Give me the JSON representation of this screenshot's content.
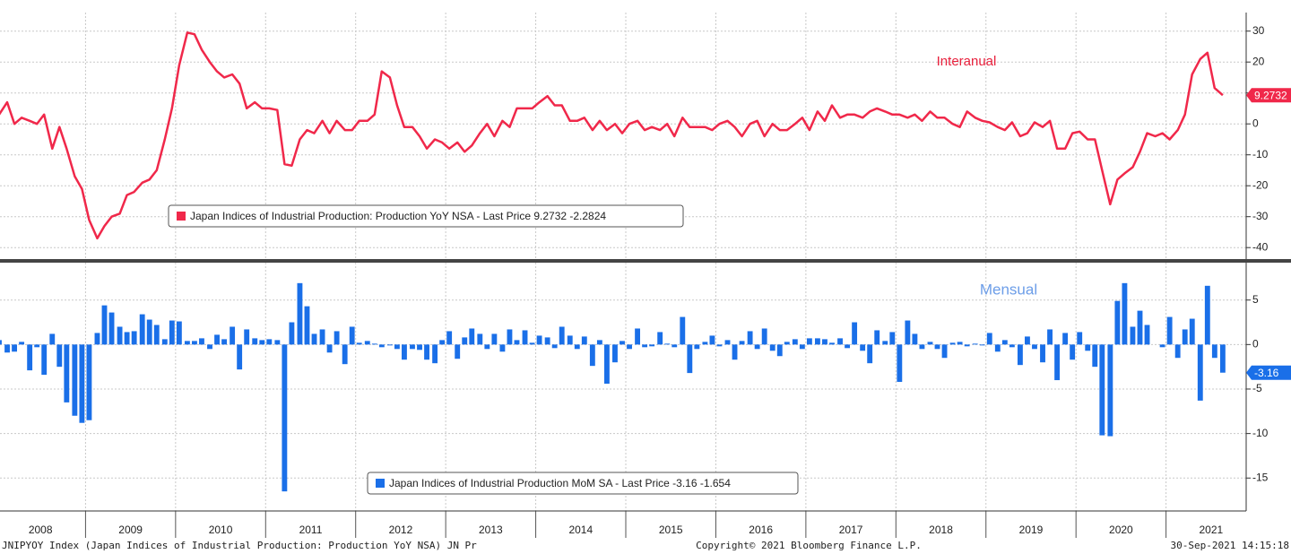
{
  "chart_data": [
    {
      "type": "line",
      "annotation": "Interanual",
      "annotation_color": "#e8203c",
      "series": [
        {
          "name": "Japan Indices of Industrial Production: Production YoY NSA - Last Price 9.2732  -2.2824",
          "color": "#f0284a",
          "values": [
            3,
            7,
            0,
            2,
            1,
            0,
            3,
            -8,
            -1,
            -8,
            -17,
            -21,
            -31,
            -37,
            -33,
            -30,
            -29,
            -23,
            -22,
            -19,
            -18,
            -15,
            -5,
            5,
            19,
            29.5,
            29,
            24,
            20,
            17,
            15,
            16,
            13,
            5,
            7,
            5,
            5,
            4.5,
            -13,
            -13.5,
            -5,
            -2,
            -3,
            1,
            -3,
            1,
            -2,
            -2,
            1,
            1,
            3,
            17,
            15,
            6,
            -1,
            -1,
            -4,
            -8,
            -5,
            -6,
            -8,
            -6,
            -9,
            -7,
            -3,
            0,
            -4,
            1,
            -1,
            5,
            5,
            5,
            7,
            9,
            6,
            6,
            1,
            1,
            2,
            -2,
            1,
            -2,
            0,
            -3,
            0,
            1,
            -2,
            -1,
            -2,
            0,
            -4,
            2,
            -1,
            -1,
            -1,
            -2,
            0,
            1,
            -1,
            -4,
            0,
            1,
            -4,
            0,
            -2,
            -2,
            0,
            2,
            -2,
            4,
            1,
            6,
            2,
            3,
            3,
            2,
            4,
            5,
            4,
            3,
            3,
            2,
            3,
            1,
            4,
            2,
            2,
            0,
            -1,
            4,
            2,
            1,
            0.5,
            -1,
            -2,
            0.5,
            -4,
            -3,
            0.5,
            -1,
            1,
            -8,
            -8,
            -3,
            -2.5,
            -5,
            -5,
            -15,
            -26,
            -18,
            -16,
            -14,
            -9,
            -3,
            -4,
            -3,
            -5,
            -2,
            3,
            16,
            21,
            23,
            11.6,
            9.2732
          ]
        }
      ],
      "ylim": [
        -44,
        36
      ],
      "yticks": [
        -40,
        -30,
        -20,
        -10,
        0,
        10,
        20,
        30
      ],
      "grid": true,
      "legend": "lower-left"
    },
    {
      "type": "bar",
      "annotation": "Mensual",
      "annotation_color": "#6d9ee8",
      "x": [
        2008.04,
        2008.13,
        2008.21,
        2008.29,
        2008.38,
        2008.46,
        2008.54,
        2008.63,
        2008.71,
        2008.79,
        2008.88,
        2008.96,
        2009.04,
        2009.13,
        2009.21,
        2009.29,
        2009.38,
        2009.46,
        2009.54,
        2009.63,
        2009.71,
        2009.79,
        2009.88,
        2009.96,
        2010.04,
        2010.13,
        2010.21,
        2010.29,
        2010.38,
        2010.46,
        2010.54,
        2010.63,
        2010.71,
        2010.79,
        2010.88,
        2010.96,
        2011.04,
        2011.13,
        2011.21,
        2011.29,
        2011.38,
        2011.46,
        2011.54,
        2011.63,
        2011.71,
        2011.79,
        2011.88,
        2011.96,
        2012.04,
        2012.13,
        2012.21,
        2012.29,
        2012.38,
        2012.46,
        2012.54,
        2012.63,
        2012.71,
        2012.79,
        2012.88,
        2012.96,
        2013.04,
        2013.13,
        2013.21,
        2013.29,
        2013.38,
        2013.46,
        2013.54,
        2013.63,
        2013.71,
        2013.79,
        2013.88,
        2013.96,
        2014.04,
        2014.13,
        2014.21,
        2014.29,
        2014.38,
        2014.46,
        2014.54,
        2014.63,
        2014.71,
        2014.79,
        2014.88,
        2014.96,
        2015.04,
        2015.13,
        2015.21,
        2015.29,
        2015.38,
        2015.46,
        2015.54,
        2015.63,
        2015.71,
        2015.79,
        2015.88,
        2015.96,
        2016.04,
        2016.13,
        2016.21,
        2016.29,
        2016.38,
        2016.46,
        2016.54,
        2016.63,
        2016.71,
        2016.79,
        2016.88,
        2016.96,
        2017.04,
        2017.13,
        2017.21,
        2017.29,
        2017.38,
        2017.46,
        2017.54,
        2017.63,
        2017.71,
        2017.79,
        2017.88,
        2017.96,
        2018.04,
        2018.13,
        2018.21,
        2018.29,
        2018.38,
        2018.46,
        2018.54,
        2018.63,
        2018.71,
        2018.79,
        2018.88,
        2018.96,
        2019.04,
        2019.13,
        2019.21,
        2019.29,
        2019.38,
        2019.46,
        2019.54,
        2019.63,
        2019.71,
        2019.79,
        2019.88,
        2019.96,
        2020.04,
        2020.13,
        2020.21,
        2020.29,
        2020.38,
        2020.46,
        2020.54,
        2020.63,
        2020.71,
        2020.79,
        2020.88,
        2020.96,
        2021.04,
        2021.13,
        2021.21,
        2021.29,
        2021.38,
        2021.46,
        2021.54,
        2021.63
      ],
      "series": [
        {
          "name": "Japan Indices of Industrial Production MoM SA - Last Price -3.16  -1.654",
          "color": "#1a6fe8",
          "values": [
            0.5,
            -0.9,
            -0.8,
            0.3,
            -2.9,
            -0.3,
            -3.4,
            1.2,
            -2.5,
            -6.5,
            -8,
            -8.8,
            -8.5,
            1.3,
            4.4,
            3.6,
            2,
            1.4,
            1.5,
            3.4,
            2.8,
            2.2,
            0.6,
            2.7,
            2.6,
            0.4,
            0.4,
            0.7,
            -0.5,
            1.1,
            0.6,
            2,
            -2.8,
            1.7,
            0.7,
            0.5,
            0.6,
            0.5,
            -16.5,
            2.5,
            6.9,
            4.3,
            1.2,
            1.7,
            -0.9,
            1.5,
            -2.2,
            2,
            0.2,
            0.4,
            0.1,
            -0.3,
            -0.1,
            -0.5,
            -1.7,
            -0.5,
            -0.6,
            -1.7,
            -2.1,
            0.5,
            1.5,
            -1.6,
            0.8,
            1.8,
            1.2,
            -0.5,
            1.2,
            -0.8,
            1.7,
            0.5,
            1.6,
            0.2,
            1,
            0.8,
            -0.4,
            2,
            1,
            -0.5,
            0.9,
            -2.4,
            0.5,
            -4.4,
            -2,
            0.4,
            -0.5,
            1.8,
            -0.3,
            -0.2,
            1.4,
            0.1,
            -0.3,
            3.1,
            -3.2,
            -0.5,
            0.3,
            1,
            -0.2,
            0.5,
            -1.7,
            0.4,
            1.5,
            -0.5,
            1.8,
            -0.7,
            -1.3,
            0.3,
            0.6,
            -0.5,
            0.7,
            0.7,
            0.6,
            0.2,
            0.7,
            -0.4,
            2.5,
            -0.7,
            -2.1,
            1.6,
            0.4,
            1.4,
            -4.2,
            2.7,
            1.2,
            -0.5,
            0.3,
            -0.5,
            -1.5,
            0.2,
            0.3,
            -0.2,
            0.1,
            -0.1,
            1.3,
            -0.8,
            0.5,
            -0.3,
            -2.3,
            0.9,
            -0.5,
            -2,
            1.7,
            -4,
            1.3,
            -1.7,
            1.4,
            -0.7,
            -2.5,
            -10.2,
            -10.3,
            4.9,
            6.9,
            2,
            3.8,
            2.2,
            0,
            -0.3,
            3.1,
            -1.5,
            1.7,
            2.9,
            -6.3,
            6.6,
            -1.5,
            -3.16
          ]
        }
      ],
      "xlim": [
        2008.05,
        2021.89
      ],
      "xticks": [
        {
          "value": 2008.5,
          "label": "2008"
        },
        {
          "value": 2009.5,
          "label": "2009"
        },
        {
          "value": 2010.5,
          "label": "2010"
        },
        {
          "value": 2011.5,
          "label": "2011"
        },
        {
          "value": 2012.5,
          "label": "2012"
        },
        {
          "value": 2013.5,
          "label": "2013"
        },
        {
          "value": 2014.5,
          "label": "2014"
        },
        {
          "value": 2015.5,
          "label": "2015"
        },
        {
          "value": 2016.5,
          "label": "2016"
        },
        {
          "value": 2017.5,
          "label": "2017"
        },
        {
          "value": 2018.5,
          "label": "2018"
        },
        {
          "value": 2019.5,
          "label": "2019"
        },
        {
          "value": 2020.5,
          "label": "2020"
        },
        {
          "value": 2021.5,
          "label": "2021"
        }
      ],
      "ylim": [
        -18.7,
        9.2
      ],
      "yticks": [
        -15,
        -10,
        -5,
        0,
        5
      ],
      "grid": true,
      "legend": "lower-center"
    }
  ],
  "footer": {
    "left": "JNIPYOY Index (Japan Indices of Industrial Production: Production YoY NSA) JN Pr",
    "center": "Copyright© 2021 Bloomberg Finance L.P.",
    "right": "30-Sep-2021 14:15:18"
  }
}
